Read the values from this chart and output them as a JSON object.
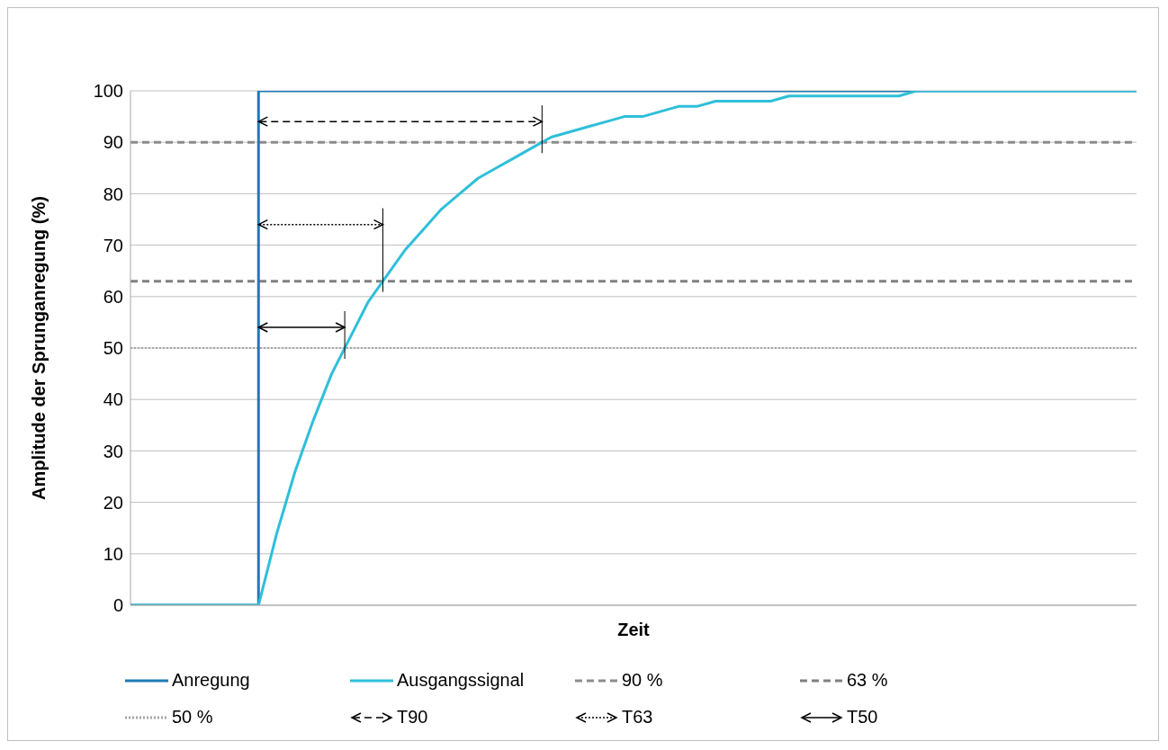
{
  "chart_data": {
    "type": "line",
    "xlabel": "Zeit",
    "ylabel": "Amplitude der Sprunganregung (%)",
    "categories": [
      null,
      null,
      null,
      null,
      null,
      null,
      null,
      null,
      null,
      null,
      null,
      null,
      null,
      null,
      null,
      null,
      null,
      null,
      null,
      null,
      null,
      null,
      null,
      null,
      null,
      null,
      null,
      null,
      null,
      null,
      null,
      null,
      null,
      null,
      null,
      null,
      null,
      null,
      null,
      null,
      null,
      null,
      null,
      null,
      null,
      null,
      null,
      null,
      null,
      null,
      null,
      null,
      null,
      null,
      null,
      null
    ],
    "ylim": [
      0,
      100
    ],
    "yticks": [
      0,
      10,
      20,
      30,
      40,
      50,
      60,
      70,
      80,
      90,
      100
    ],
    "grid": "y",
    "legend": "bottom",
    "tick_labels": "y",
    "series": [
      {
        "name": "Anregung",
        "type": "step",
        "color": "#1f7bb6",
        "values": [
          0,
          0,
          0,
          0,
          0,
          0,
          0,
          100,
          100,
          100,
          100,
          100,
          100,
          100,
          100,
          100,
          100,
          100,
          100,
          100,
          100,
          100,
          100,
          100,
          100,
          100,
          100,
          100,
          100,
          100,
          100,
          100,
          100,
          100,
          100,
          100,
          100,
          100,
          100,
          100,
          100,
          100,
          100,
          100,
          100,
          100,
          100,
          100,
          100,
          100,
          100,
          100,
          100,
          100,
          100,
          100
        ]
      },
      {
        "name": "Ausgangssignal",
        "color": "#2ebfd9",
        "values": [
          0,
          0,
          0,
          0,
          0,
          0,
          0,
          0,
          14,
          26,
          36,
          45,
          52,
          59,
          64,
          69,
          73,
          77,
          80,
          83,
          85,
          87,
          89,
          91,
          92,
          93,
          94,
          95,
          95,
          96,
          97,
          97,
          98,
          98,
          98,
          98,
          99,
          99,
          99,
          99,
          99,
          99,
          99,
          100,
          100,
          100,
          100,
          100,
          100,
          100,
          100,
          100,
          100,
          100,
          100,
          100
        ]
      }
    ],
    "ref_lines": [
      {
        "axis": "y",
        "value": 90,
        "label": "90 %",
        "color": "#8c8c8c",
        "line_style": "dashed"
      },
      {
        "axis": "y",
        "value": 63,
        "label": "63 %",
        "color": "#808080",
        "line_style": "dashed"
      },
      {
        "axis": "y",
        "value": 50,
        "label": "50 %",
        "color": "#a6a6a6",
        "line_style": "dotted"
      }
    ],
    "annotations": [
      "T90",
      "T63",
      "T50"
    ]
  }
}
